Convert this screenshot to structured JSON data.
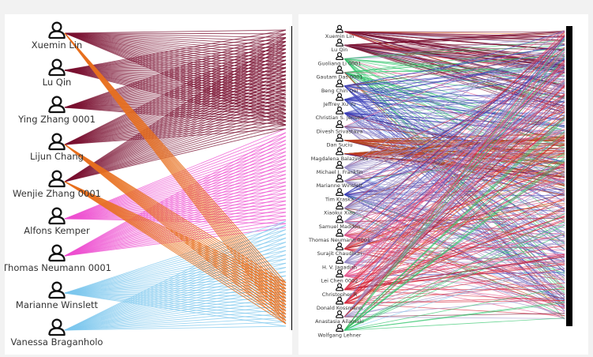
{
  "left": {
    "authors": [
      {
        "name": "Xuemin Lin"
      },
      {
        "name": "Lu Qin"
      },
      {
        "name": "Ying Zhang 0001"
      },
      {
        "name": "Lijun Chang"
      },
      {
        "name": "Wenjie Zhang 0001"
      },
      {
        "name": "Alfons Kemper"
      },
      {
        "name": "Thomas Neumann 0001"
      },
      {
        "name": "Marianne Winslett"
      },
      {
        "name": "Vanessa Braganholo"
      }
    ]
  },
  "right": {
    "authors": [
      {
        "name": "Xuemin Lin"
      },
      {
        "name": "Lu Qin"
      },
      {
        "name": "Guoliang Li 0001"
      },
      {
        "name": "Gautam Das 0001"
      },
      {
        "name": "Beng Chin Ooi"
      },
      {
        "name": "Jeffrey Xu Yu"
      },
      {
        "name": "Christian S. Jensen"
      },
      {
        "name": "Divesh Srivastava"
      },
      {
        "name": "Dan Suciu"
      },
      {
        "name": "Magdalena Balazinska"
      },
      {
        "name": "Michael J. Franklin"
      },
      {
        "name": "Marianne Winslett"
      },
      {
        "name": "Tim Kraska"
      },
      {
        "name": "Xiaokui Xiao"
      },
      {
        "name": "Samuel Madden"
      },
      {
        "name": "Thomas Neumann 0001"
      },
      {
        "name": "Surajit Chaudhuri"
      },
      {
        "name": "H. V. Jagadish"
      },
      {
        "name": "Lei Chen 0002"
      },
      {
        "name": "Christopher R"
      },
      {
        "name": "Donald Kossmann"
      },
      {
        "name": "Anastasia Ailamaki"
      },
      {
        "name": "Wolfgang Lehner"
      }
    ]
  },
  "colors": {
    "maroon": "#7a1030",
    "orange": "#e8701e",
    "magenta": "#ee4fd0",
    "skyblue": "#7cc7ee",
    "green": "#2fc46a",
    "blue": "#3a3fb8",
    "rust": "#b5441a",
    "lavender": "#9a8ec8",
    "pink": "#e85a90",
    "red": "#d8283a",
    "axis": "#000000"
  }
}
